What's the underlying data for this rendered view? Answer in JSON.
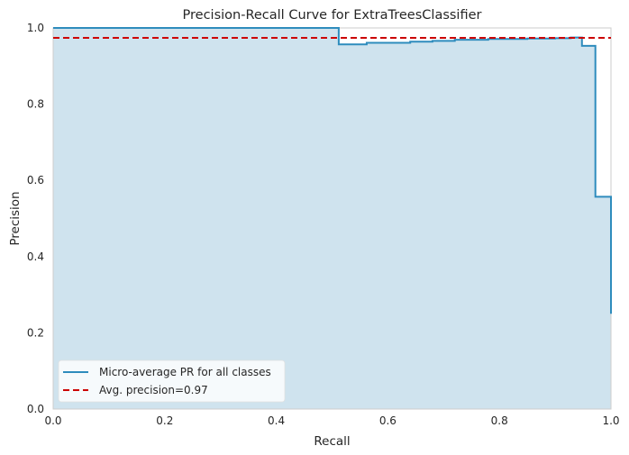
{
  "chart_data": {
    "type": "line",
    "title": "Precision-Recall Curve for ExtraTreesClassifier",
    "xlabel": "Recall",
    "ylabel": "Precision",
    "xlim": [
      0,
      1
    ],
    "ylim": [
      0,
      1
    ],
    "xticks": [
      "0.0",
      "0.2",
      "0.4",
      "0.6",
      "0.8",
      "1.0"
    ],
    "yticks": [
      "0.0",
      "0.2",
      "0.4",
      "0.6",
      "0.8",
      "1.0"
    ],
    "grid": false,
    "legend_position": "lower-left",
    "series": [
      {
        "name": "Micro-average PR for all classes",
        "style": "step",
        "filled": true,
        "color": "#2e8cbd",
        "fill_color": "#cfe3ee",
        "points": [
          [
            0.0,
            1.0
          ],
          [
            0.512,
            1.0
          ],
          [
            0.512,
            0.957
          ],
          [
            0.562,
            0.957
          ],
          [
            0.562,
            0.961
          ],
          [
            0.64,
            0.961
          ],
          [
            0.64,
            0.964
          ],
          [
            0.68,
            0.964
          ],
          [
            0.68,
            0.966
          ],
          [
            0.72,
            0.966
          ],
          [
            0.72,
            0.969
          ],
          [
            0.78,
            0.969
          ],
          [
            0.78,
            0.971
          ],
          [
            0.85,
            0.971
          ],
          [
            0.85,
            0.972
          ],
          [
            0.9,
            0.972
          ],
          [
            0.9,
            0.973
          ],
          [
            0.928,
            0.973
          ],
          [
            0.928,
            0.975
          ],
          [
            0.948,
            0.975
          ],
          [
            0.948,
            0.953
          ],
          [
            0.972,
            0.953
          ],
          [
            0.972,
            0.557
          ],
          [
            1.0,
            0.557
          ],
          [
            1.0,
            0.25
          ]
        ]
      },
      {
        "name": "Avg. precision=0.97",
        "style": "dashed",
        "color": "#cc0000",
        "y": 0.974
      }
    ]
  }
}
